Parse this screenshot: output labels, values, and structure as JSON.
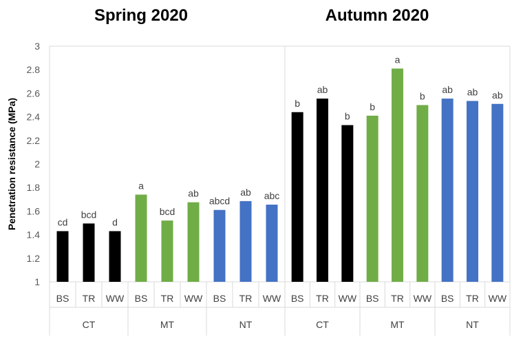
{
  "chart_data": [
    {
      "type": "bar",
      "title": "Spring 2020",
      "ylabel": "Penetration resistance (MPa)",
      "ylim": [
        1,
        3
      ],
      "yticks": [
        "1",
        "1.2",
        "1.4",
        "1.6",
        "1.8",
        "2",
        "2.2",
        "2.4",
        "2.6",
        "2.8",
        "3"
      ],
      "groups": [
        "CT",
        "MT",
        "NT"
      ],
      "categories": [
        "BS",
        "TR",
        "WW",
        "BS",
        "TR",
        "WW",
        "BS",
        "TR",
        "WW"
      ],
      "values": [
        1.43,
        1.495,
        1.43,
        1.74,
        1.52,
        1.675,
        1.61,
        1.685,
        1.655
      ],
      "letters": [
        "cd",
        "bcd",
        "d",
        "a",
        "bcd",
        "ab",
        "abcd",
        "ab",
        "abc"
      ],
      "group_colors": [
        "#000000",
        "#70AD47",
        "#4472C4"
      ],
      "grid": false
    },
    {
      "type": "bar",
      "title": "Autumn 2020",
      "ylim": [
        1,
        3
      ],
      "groups": [
        "CT",
        "MT",
        "NT"
      ],
      "categories": [
        "BS",
        "TR",
        "WW",
        "BS",
        "TR",
        "WW",
        "BS",
        "TR",
        "WW"
      ],
      "values": [
        2.44,
        2.555,
        2.33,
        2.41,
        2.81,
        2.5,
        2.555,
        2.535,
        2.51
      ],
      "letters": [
        "b",
        "ab",
        "b",
        "b",
        "a",
        "b",
        "ab",
        "ab",
        "ab"
      ],
      "group_colors": [
        "#000000",
        "#70AD47",
        "#4472C4"
      ],
      "grid": false
    }
  ]
}
